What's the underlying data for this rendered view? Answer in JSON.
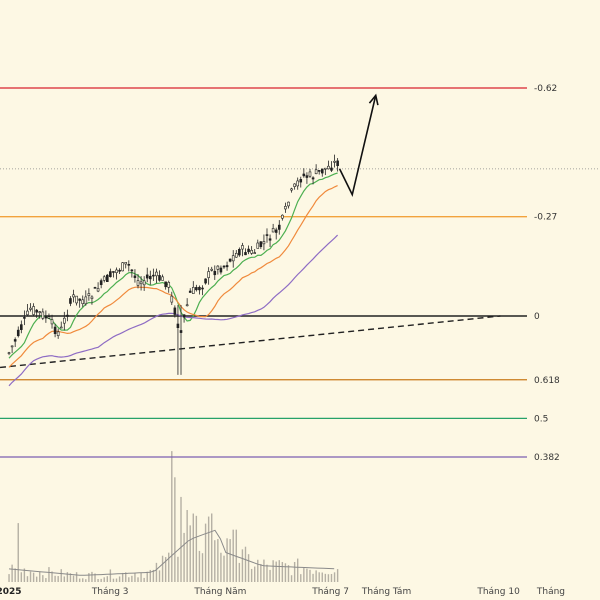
{
  "chart_data": {
    "type": "candlestick",
    "x_axis": {
      "ticks": [
        {
          "label": "2025",
          "bold": true,
          "day": 0
        },
        {
          "label": "Tháng 3",
          "day": 56
        },
        {
          "label": "Tháng Năm",
          "day": 117
        },
        {
          "label": "Tháng 7",
          "day": 178
        },
        {
          "label": "Tháng Tám",
          "day": 209
        },
        {
          "label": "Tháng 10",
          "day": 271
        },
        {
          "label": "Tháng",
          "day": 300
        }
      ],
      "range_days": [
        -5,
        305
      ]
    },
    "y_range": [
      -0.78,
      0.72
    ],
    "fib_levels": [
      {
        "label": "-0.62",
        "value": -0.62,
        "color": "#d9232e"
      },
      {
        "label": "-0.27",
        "value": -0.27,
        "color": "#f2a33c"
      },
      {
        "label": "0",
        "value": 0,
        "color": "#222222"
      }
    ],
    "volume_fib_levels": [
      {
        "label": "0.382",
        "value": 0.382,
        "color": "#7b5fb0"
      },
      {
        "label": "0.5",
        "value": 0.5,
        "color": "#26a269"
      },
      {
        "label": "0.618",
        "value": 0.618,
        "color": "#c87a1a"
      }
    ],
    "last_price_level": -0.4,
    "trend_line": {
      "from": [
        -5,
        0.14
      ],
      "to": [
        272,
        0
      ]
    },
    "projection_arrow": [
      [
        183,
        -0.4
      ],
      [
        190,
        -0.33
      ],
      [
        203,
        -0.6
      ]
    ],
    "price_anchors": [
      [
        0,
        0.1
      ],
      [
        6,
        0.04
      ],
      [
        12,
        -0.02
      ],
      [
        20,
        0.0
      ],
      [
        28,
        0.05
      ],
      [
        35,
        -0.05
      ],
      [
        43,
        -0.04
      ],
      [
        50,
        -0.08
      ],
      [
        58,
        -0.12
      ],
      [
        66,
        -0.14
      ],
      [
        72,
        -0.09
      ],
      [
        80,
        -0.11
      ],
      [
        88,
        -0.09
      ],
      [
        95,
        0.05
      ],
      [
        100,
        -0.06
      ],
      [
        106,
        -0.08
      ],
      [
        112,
        -0.12
      ],
      [
        120,
        -0.14
      ],
      [
        128,
        -0.18
      ],
      [
        135,
        -0.17
      ],
      [
        143,
        -0.21
      ],
      [
        150,
        -0.24
      ],
      [
        156,
        -0.33
      ],
      [
        162,
        -0.38
      ],
      [
        168,
        -0.38
      ],
      [
        175,
        -0.4
      ],
      [
        182,
        -0.42
      ]
    ],
    "volume_anchors": [
      [
        0,
        0.04
      ],
      [
        20,
        0.03
      ],
      [
        40,
        0.02
      ],
      [
        60,
        0.025
      ],
      [
        80,
        0.03
      ],
      [
        90,
        0.08
      ],
      [
        100,
        0.13
      ],
      [
        110,
        0.15
      ],
      [
        115,
        0.16
      ],
      [
        120,
        0.09
      ],
      [
        130,
        0.07
      ],
      [
        140,
        0.05
      ],
      [
        160,
        0.045
      ],
      [
        182,
        0.04
      ]
    ],
    "volume_spikes": [
      {
        "day": 90,
        "value": 0.4
      },
      {
        "day": 92,
        "value": 0.32
      },
      {
        "day": 95,
        "value": 0.26
      },
      {
        "day": 98,
        "value": 0.22
      },
      {
        "day": 110,
        "value": 0.2
      },
      {
        "day": 125,
        "value": 0.16
      },
      {
        "day": 5,
        "value": 0.18
      }
    ]
  }
}
